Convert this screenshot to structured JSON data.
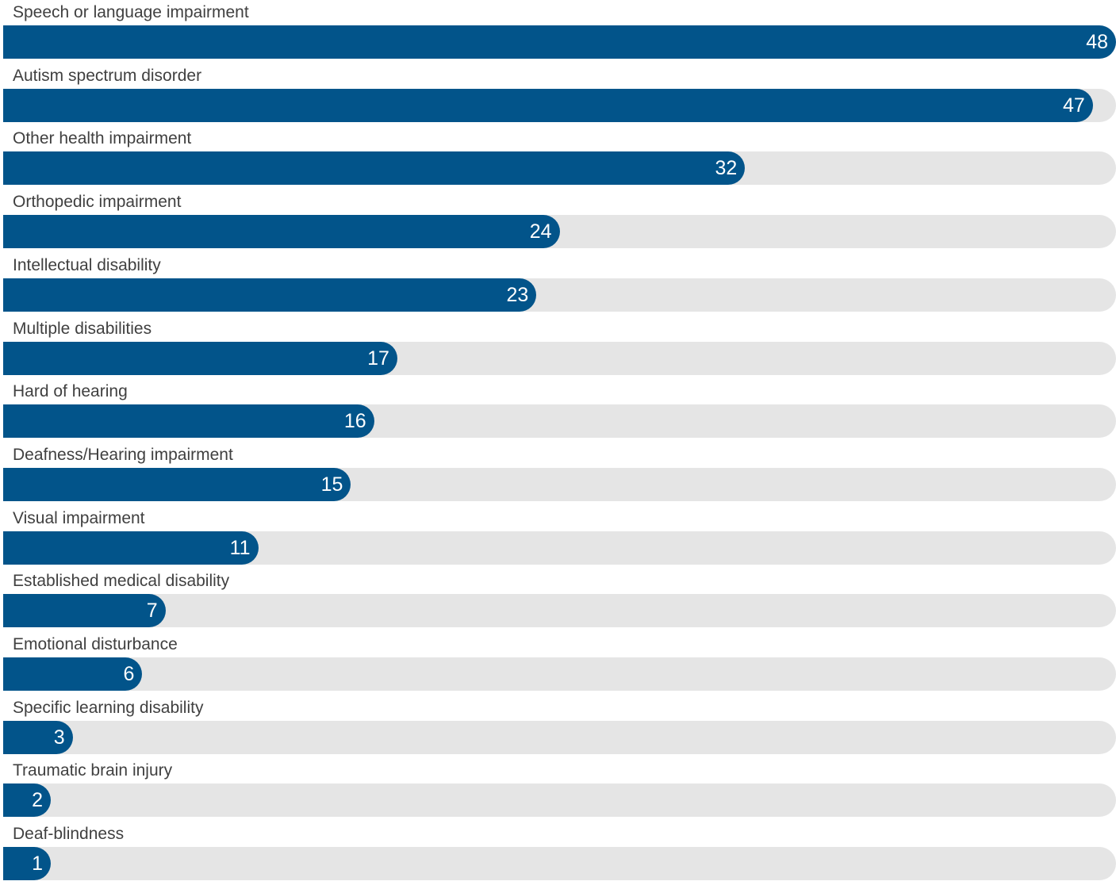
{
  "chart_data": {
    "type": "bar",
    "orientation": "horizontal",
    "categories": [
      "Speech or language impairment",
      "Autism spectrum disorder",
      "Other health impairment",
      "Orthopedic impairment",
      "Intellectual disability",
      "Multiple disabilities",
      "Hard of hearing",
      "Deafness/Hearing impairment",
      "Visual impairment",
      "Established medical disability",
      "Emotional disturbance",
      "Specific learning disability",
      "Traumatic brain injury",
      "Deaf-blindness"
    ],
    "values": [
      48,
      47,
      32,
      24,
      23,
      17,
      16,
      15,
      11,
      7,
      6,
      3,
      2,
      1
    ],
    "xlim": [
      0,
      48
    ],
    "grid": false,
    "legend": "none",
    "colors": {
      "bar": "#02548a",
      "track": "#e5e5e5",
      "label": "#404040",
      "value_text": "#ffffff"
    }
  }
}
